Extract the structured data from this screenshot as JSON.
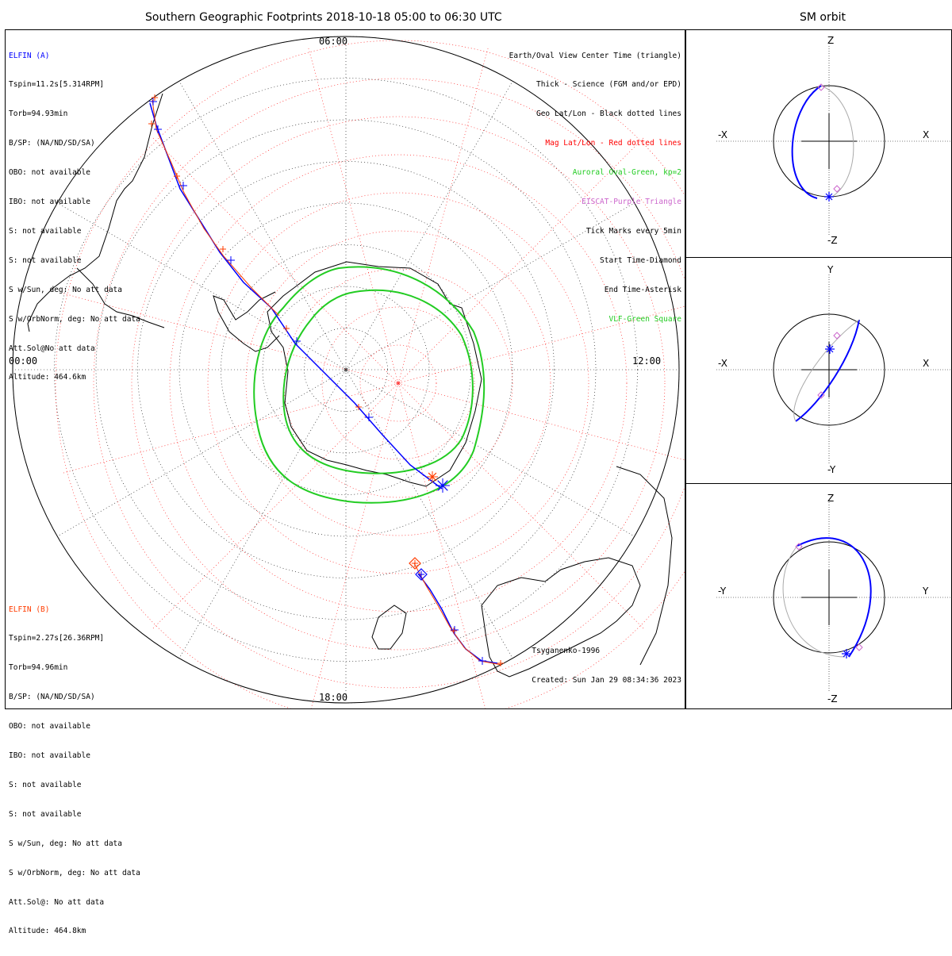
{
  "titles": {
    "main": "Southern Geographic Footprints 2018-10-18 05:00 to 06:30 UTC",
    "orbit": "SM orbit"
  },
  "elfin_a": {
    "name": "ELFIN (A)",
    "color": "#0000ff",
    "lines": [
      "Tspin=11.2s[5.314RPM]",
      "Torb=94.93min",
      "B/SP: (NA/ND/SD/SA)",
      "OBO: not available",
      "IBO: not available",
      "S: not available",
      "S: not available",
      "S w/Sun, deg: No att data",
      "S w/OrbNorm, deg: No att data",
      "Att.Sol@No att data",
      "Altitude: 464.6km"
    ]
  },
  "elfin_b": {
    "name": "ELFIN (B)",
    "color": "#ff3c00",
    "lines": [
      "Tspin=2.27s[26.36RPM]",
      "Torb=94.96min",
      "B/SP: (NA/ND/SD/SA)",
      "OBO: not available",
      "IBO: not available",
      "S: not available",
      "S: not available",
      "S w/Sun, deg: No att data",
      "S w/OrbNorm, deg: No att data",
      "Att.Sol@: No att data",
      "Altitude: 464.8km"
    ]
  },
  "legend": [
    {
      "text": "Earth/Oval View Center Time (triangle)",
      "color": "#000000"
    },
    {
      "text": "Thick - Science (FGM and/or EPD)",
      "color": "#000000"
    },
    {
      "text": "Geo Lat/Lon - Black dotted lines",
      "color": "#000000"
    },
    {
      "text": "Mag Lat/Lon - Red dotted lines",
      "color": "#ff0000"
    },
    {
      "text": "Auroral Oval-Green, kp=2",
      "color": "#22cc22"
    },
    {
      "text": "EISCAT-Purple Triangle",
      "color": "#cc66cc"
    },
    {
      "text": "Tick Marks every 5min",
      "color": "#000000"
    },
    {
      "text": "Start Time-Diamond",
      "color": "#000000"
    },
    {
      "text": "End Time-Asterisk",
      "color": "#000000"
    },
    {
      "text": "VLF-Green Square",
      "color": "#22cc22"
    }
  ],
  "hour_labels": {
    "top": "06:00",
    "left": "00:00",
    "right": "12:00",
    "bottom": "18:00"
  },
  "footer": {
    "model": "Tsyganenko-1996",
    "created": "Created: Sun Jan 29 08:34:36 2023"
  },
  "orbit_panels": [
    {
      "top": "Z",
      "bottom": "-Z",
      "left": "-X",
      "right": "X"
    },
    {
      "top": "Y",
      "bottom": "-Y",
      "left": "-X",
      "right": "X"
    },
    {
      "top": "Z",
      "bottom": "-Z",
      "left": "-Y",
      "right": "Y"
    }
  ],
  "colors": {
    "elfin_a": "#0000ff",
    "elfin_b": "#ff3c00",
    "oval": "#22cc22",
    "mag_grid": "#ff0000",
    "geo_grid": "#000000",
    "orbit_gray": "#aaaaaa"
  }
}
